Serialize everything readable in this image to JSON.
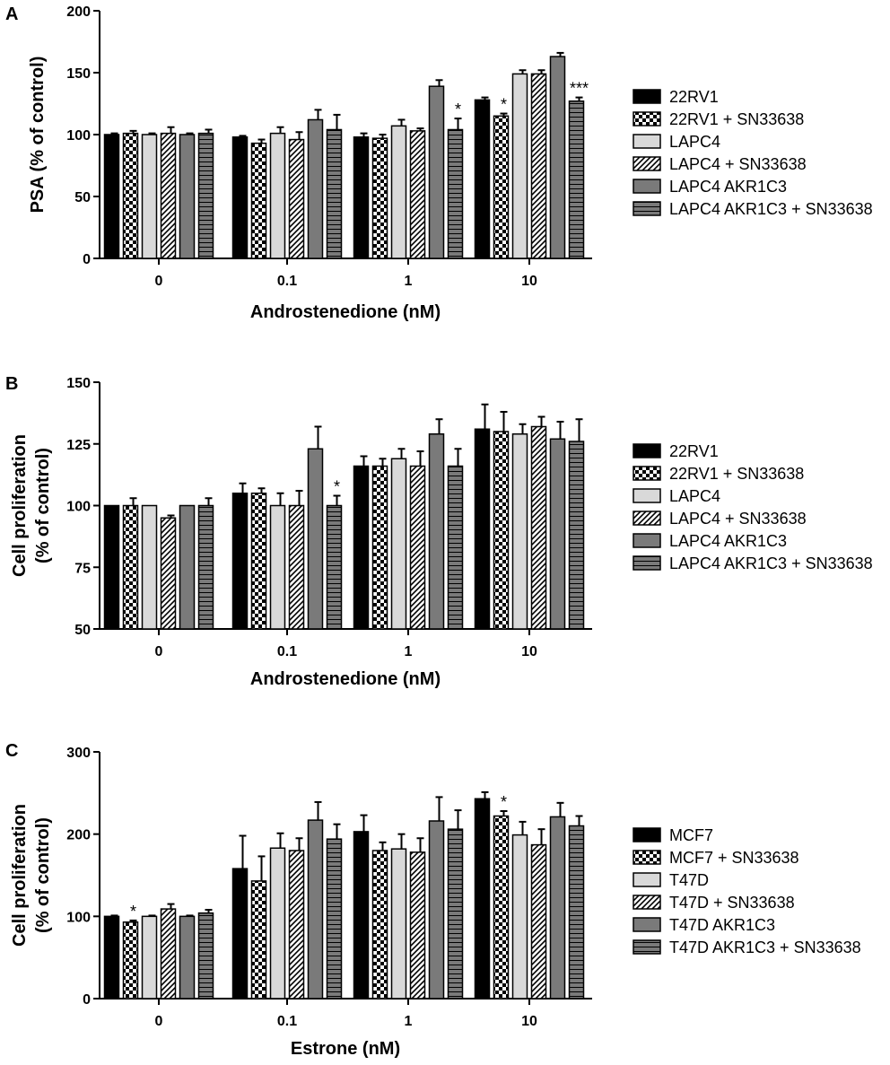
{
  "colors": {
    "black": "#000000",
    "light_gray": "#d9d9d9",
    "dark_gray": "#7a7a7a",
    "white": "#ffffff"
  },
  "chart_data": [
    {
      "panel": "A",
      "type": "bar",
      "ylabel": "PSA (% of control)",
      "xlabel": "Androstenedione (nM)",
      "ylim": [
        0,
        200
      ],
      "yticks": [
        0,
        50,
        100,
        150,
        200
      ],
      "categories": [
        "0",
        "0.1",
        "1",
        "10"
      ],
      "series": [
        {
          "name": "22RV1",
          "style": "solid-black",
          "values": [
            100,
            98,
            98,
            128
          ],
          "errors": [
            1,
            1,
            3,
            2
          ]
        },
        {
          "name": "22RV1 + SN33638",
          "style": "checker",
          "values": [
            101,
            93,
            97,
            115
          ],
          "errors": [
            2,
            3,
            3,
            2
          ]
        },
        {
          "name": "LAPC4",
          "style": "solid-light",
          "values": [
            100,
            101,
            107,
            149
          ],
          "errors": [
            1,
            5,
            5,
            3
          ]
        },
        {
          "name": "LAPC4 + SN33638",
          "style": "diagonal",
          "values": [
            101,
            96,
            103,
            149
          ],
          "errors": [
            5,
            6,
            2,
            3
          ]
        },
        {
          "name": "LAPC4 AKR1C3",
          "style": "solid-dark",
          "values": [
            100,
            112,
            139,
            163
          ],
          "errors": [
            1,
            8,
            5,
            3
          ]
        },
        {
          "name": "LAPC4 AKR1C3 + SN33638",
          "style": "horizontal",
          "values": [
            101,
            104,
            104,
            127
          ],
          "errors": [
            3,
            12,
            9,
            3
          ]
        }
      ],
      "annotations": [
        {
          "text": "*",
          "category": "1",
          "series": "LAPC4 AKR1C3 + SN33638"
        },
        {
          "text": "*",
          "category": "10",
          "series": "22RV1 + SN33638"
        },
        {
          "text": "***",
          "category": "10",
          "series": "LAPC4 AKR1C3 + SN33638"
        }
      ],
      "legend": "right"
    },
    {
      "panel": "B",
      "type": "bar",
      "ylabel_lines": [
        "Cell proliferation",
        "(% of control)"
      ],
      "xlabel": "Androstenedione (nM)",
      "ylim": [
        50,
        150
      ],
      "yticks": [
        50,
        75,
        100,
        125,
        150
      ],
      "categories": [
        "0",
        "0.1",
        "1",
        "10"
      ],
      "series": [
        {
          "name": "22RV1",
          "style": "solid-black",
          "values": [
            100,
            105,
            116,
            131
          ],
          "errors": [
            0,
            4,
            4,
            10
          ]
        },
        {
          "name": "22RV1 + SN33638",
          "style": "checker",
          "values": [
            100,
            105,
            116,
            130
          ],
          "errors": [
            3,
            2,
            3,
            8
          ]
        },
        {
          "name": "LAPC4",
          "style": "solid-light",
          "values": [
            100,
            100,
            119,
            129
          ],
          "errors": [
            0,
            5,
            4,
            4
          ]
        },
        {
          "name": "LAPC4 + SN33638",
          "style": "diagonal",
          "values": [
            95,
            100,
            116,
            132
          ],
          "errors": [
            1,
            6,
            6,
            4
          ]
        },
        {
          "name": "LAPC4 AKR1C3",
          "style": "solid-dark",
          "values": [
            100,
            123,
            129,
            127
          ],
          "errors": [
            0,
            9,
            6,
            7
          ]
        },
        {
          "name": "LAPC4 AKR1C3 + SN33638",
          "style": "horizontal",
          "values": [
            100,
            100,
            116,
            126
          ],
          "errors": [
            3,
            4,
            7,
            9
          ]
        }
      ],
      "annotations": [
        {
          "text": "*",
          "category": "0.1",
          "series": "LAPC4 AKR1C3 + SN33638"
        }
      ],
      "legend": "right"
    },
    {
      "panel": "C",
      "type": "bar",
      "ylabel_lines": [
        "Cell proliferation",
        "(% of control)"
      ],
      "xlabel": "Estrone (nM)",
      "ylim": [
        0,
        300
      ],
      "yticks": [
        0,
        100,
        200,
        300
      ],
      "categories": [
        "0",
        "0.1",
        "1",
        "10"
      ],
      "series": [
        {
          "name": "MCF7",
          "style": "solid-black",
          "values": [
            100,
            158,
            203,
            243
          ],
          "errors": [
            1,
            40,
            20,
            8
          ]
        },
        {
          "name": "MCF7 + SN33638",
          "style": "checker",
          "values": [
            93,
            143,
            180,
            222
          ],
          "errors": [
            2,
            30,
            10,
            6
          ]
        },
        {
          "name": "T47D",
          "style": "solid-light",
          "values": [
            100,
            183,
            182,
            199
          ],
          "errors": [
            1,
            18,
            18,
            16
          ]
        },
        {
          "name": "T47D + SN33638",
          "style": "diagonal",
          "values": [
            109,
            180,
            178,
            187
          ],
          "errors": [
            6,
            15,
            17,
            19
          ]
        },
        {
          "name": "T47D AKR1C3",
          "style": "solid-dark",
          "values": [
            100,
            217,
            216,
            221
          ],
          "errors": [
            1,
            22,
            29,
            17
          ]
        },
        {
          "name": "T47D AKR1C3 + SN33638",
          "style": "horizontal",
          "values": [
            104,
            194,
            206,
            210
          ],
          "errors": [
            4,
            18,
            23,
            12
          ]
        }
      ],
      "annotations": [
        {
          "text": "*",
          "category": "0",
          "series": "MCF7 + SN33638"
        },
        {
          "text": "*",
          "category": "10",
          "series": "MCF7 + SN33638"
        }
      ],
      "legend": "right"
    }
  ]
}
